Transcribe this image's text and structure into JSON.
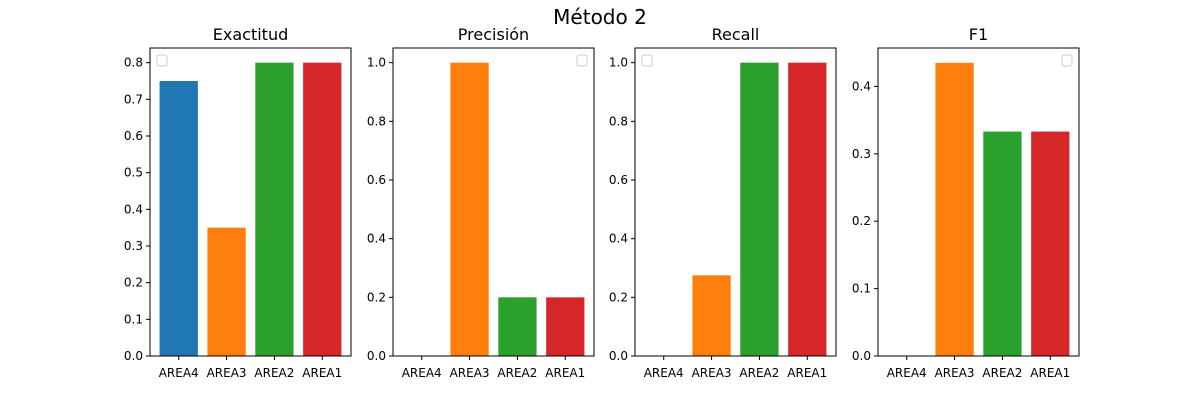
{
  "figure": {
    "title": "Método 2"
  },
  "chart_data": [
    {
      "type": "bar",
      "title": "Exactitud",
      "categories": [
        "AREA4",
        "AREA3",
        "AREA2",
        "AREA1"
      ],
      "values": [
        0.75,
        0.35,
        0.8,
        0.8
      ],
      "colors": [
        "#1f77b4",
        "#ff7f0e",
        "#2ca02c",
        "#d62728"
      ],
      "ylim": [
        0,
        0.84
      ],
      "yticks": [
        "0.0",
        "0.1",
        "0.2",
        "0.3",
        "0.4",
        "0.5",
        "0.6",
        "0.7",
        "0.8"
      ],
      "legend": "top-left",
      "grid": false
    },
    {
      "type": "bar",
      "title": "Precisión",
      "categories": [
        "AREA4",
        "AREA3",
        "AREA2",
        "AREA1"
      ],
      "values": [
        0.0,
        1.0,
        0.2,
        0.2
      ],
      "colors": [
        "#1f77b4",
        "#ff7f0e",
        "#2ca02c",
        "#d62728"
      ],
      "ylim": [
        0,
        1.05
      ],
      "yticks": [
        "0.0",
        "0.2",
        "0.4",
        "0.6",
        "0.8",
        "1.0"
      ],
      "legend": "top-right",
      "grid": false
    },
    {
      "type": "bar",
      "title": "Recall",
      "categories": [
        "AREA4",
        "AREA3",
        "AREA2",
        "AREA1"
      ],
      "values": [
        0.0,
        0.275,
        1.0,
        1.0
      ],
      "colors": [
        "#1f77b4",
        "#ff7f0e",
        "#2ca02c",
        "#d62728"
      ],
      "ylim": [
        0,
        1.05
      ],
      "yticks": [
        "0.0",
        "0.2",
        "0.4",
        "0.6",
        "0.8",
        "1.0"
      ],
      "legend": "top-left",
      "grid": false
    },
    {
      "type": "bar",
      "title": "F1",
      "categories": [
        "AREA4",
        "AREA3",
        "AREA2",
        "AREA1"
      ],
      "values": [
        0.0,
        0.435,
        0.333,
        0.333
      ],
      "colors": [
        "#1f77b4",
        "#ff7f0e",
        "#2ca02c",
        "#d62728"
      ],
      "ylim": [
        0,
        0.457
      ],
      "yticks": [
        "0.0",
        "0.1",
        "0.2",
        "0.3",
        "0.4"
      ],
      "legend": "top-right",
      "grid": false
    }
  ]
}
